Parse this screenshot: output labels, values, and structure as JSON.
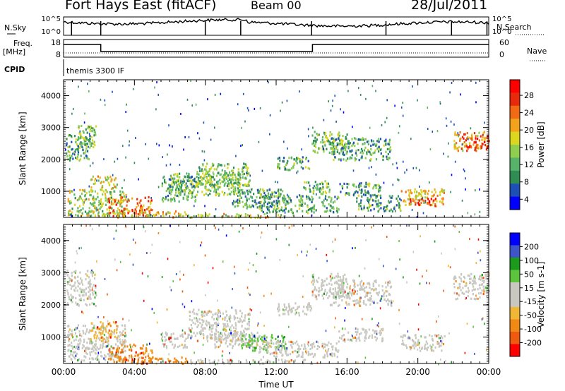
{
  "header": {
    "station": "Fort Hays East (fitACF)",
    "beam": "Beam 00",
    "date": "28/Jul/2011"
  },
  "top_panel": {
    "nsky_label": "N.Sky",
    "nsearch_label": "N.Search",
    "y_ticks_left": [
      "10^5",
      "10^0"
    ],
    "y_ticks_right": [
      "10^5",
      "10^0"
    ]
  },
  "freq_panel": {
    "label": "Freq.",
    "unit": "[MHz]",
    "nave_label": "Nave",
    "y_ticks_left": [
      "18",
      "8"
    ],
    "y_ticks_right": [
      "60",
      "0"
    ]
  },
  "cpid": {
    "label": "CPID",
    "value": "themis 3300 IF"
  },
  "colors": {
    "power_scale": [
      "#0000ff",
      "#1e4fb4",
      "#2f8d54",
      "#58b36a",
      "#8fce4f",
      "#dcd61e",
      "#f3a21c",
      "#f26a14",
      "#e82a0c",
      "#ff0000"
    ],
    "velocity_scale": [
      "#0000ff",
      "#3d55c8",
      "#1b9a1b",
      "#5cc43c",
      "#c8c8c0",
      "#c8c8c0",
      "#f2b636",
      "#f08a14",
      "#ee5a10",
      "#ff0000"
    ]
  },
  "chart_data": [
    {
      "type": "heatmap",
      "name": "power",
      "ylabel": "Slant Range [km]",
      "ylim": [
        180,
        4500
      ],
      "y_ticks": [
        1000,
        2000,
        3000,
        4000
      ],
      "x_ticks": [
        "00:00",
        "04:00",
        "08:00",
        "12:00",
        "16:00",
        "20:00",
        "00:00"
      ],
      "xlim_hours": [
        0,
        24
      ],
      "colorbar": {
        "label": "Power [dB]",
        "ticks": [
          "28",
          "24",
          "20",
          "16",
          "12",
          "8",
          "4"
        ],
        "range": [
          0,
          30
        ]
      },
      "regions": [
        {
          "t0": 0.1,
          "t1": 1.5,
          "r0": 2000,
          "r1": 2800,
          "level": 10
        },
        {
          "t0": 0.8,
          "t1": 1.8,
          "r0": 2300,
          "r1": 3100,
          "level": 12
        },
        {
          "t0": 0.2,
          "t1": 3.5,
          "r0": 250,
          "r1": 1100,
          "level": 14
        },
        {
          "t0": 1.5,
          "t1": 3.0,
          "r0": 1100,
          "r1": 1500,
          "level": 16
        },
        {
          "t0": 2.5,
          "t1": 5.0,
          "r0": 250,
          "r1": 850,
          "level": 22
        },
        {
          "t0": 5.5,
          "t1": 7.5,
          "r0": 700,
          "r1": 1500,
          "level": 10
        },
        {
          "t0": 6.0,
          "t1": 10.0,
          "r0": 900,
          "r1": 1600,
          "level": 12
        },
        {
          "t0": 7.5,
          "t1": 10.5,
          "r0": 1200,
          "r1": 1900,
          "level": 12
        },
        {
          "t0": 9.5,
          "t1": 12.5,
          "r0": 500,
          "r1": 1100,
          "level": 10
        },
        {
          "t0": 11.0,
          "t1": 15.5,
          "r0": 350,
          "r1": 900,
          "level": 10
        },
        {
          "t0": 12.0,
          "t1": 14.0,
          "r0": 1700,
          "r1": 2100,
          "level": 10
        },
        {
          "t0": 13.5,
          "t1": 15.0,
          "r0": 950,
          "r1": 1350,
          "level": 12
        },
        {
          "t0": 14.0,
          "t1": 16.0,
          "r0": 2200,
          "r1": 2900,
          "level": 12
        },
        {
          "t0": 15.0,
          "t1": 18.5,
          "r0": 2000,
          "r1": 2700,
          "level": 10
        },
        {
          "t0": 15.5,
          "t1": 18.0,
          "r0": 900,
          "r1": 1300,
          "level": 10
        },
        {
          "t0": 16.5,
          "t1": 19.0,
          "r0": 400,
          "r1": 900,
          "level": 10
        },
        {
          "t0": 19.0,
          "t1": 21.5,
          "r0": 600,
          "r1": 1100,
          "level": 18
        },
        {
          "t0": 19.5,
          "t1": 21.0,
          "r0": 550,
          "r1": 800,
          "level": 26
        },
        {
          "t0": 22.0,
          "t1": 24.0,
          "r0": 2300,
          "r1": 2900,
          "level": 20
        },
        {
          "t0": 22.5,
          "t1": 24.0,
          "r0": 2400,
          "r1": 2700,
          "level": 25
        },
        {
          "t0": 3.0,
          "t1": 7.0,
          "r0": 200,
          "r1": 400,
          "level": 18
        },
        {
          "t0": 7.0,
          "t1": 13.0,
          "r0": 200,
          "r1": 320,
          "level": 16
        }
      ]
    },
    {
      "type": "heatmap",
      "name": "velocity",
      "ylabel": "Slant Range [km]",
      "xlabel": "Time UT",
      "ylim": [
        180,
        4500
      ],
      "y_ticks": [
        1000,
        2000,
        3000,
        4000
      ],
      "x_ticks": [
        "00:00",
        "04:00",
        "08:00",
        "12:00",
        "16:00",
        "20:00",
        "00:00"
      ],
      "xlim_hours": [
        0,
        24
      ],
      "colorbar": {
        "label": "Velocity [m s-1]",
        "ticks": [
          "200",
          "100",
          "50",
          "15",
          "-15",
          "-50",
          "-100",
          "-200"
        ],
        "range": [
          -250,
          250
        ]
      },
      "regions": [
        {
          "t0": 0.1,
          "t1": 1.8,
          "r0": 2000,
          "r1": 3100,
          "level": 0
        },
        {
          "t0": 0.2,
          "t1": 3.5,
          "r0": 300,
          "r1": 1400,
          "level": 0
        },
        {
          "t0": 1.5,
          "t1": 3.0,
          "r0": 900,
          "r1": 1500,
          "level": -60
        },
        {
          "t0": 2.5,
          "t1": 5.0,
          "r0": 250,
          "r1": 800,
          "level": -150
        },
        {
          "t0": 5.5,
          "t1": 7.0,
          "r0": 700,
          "r1": 1200,
          "level": -50
        },
        {
          "t0": 7.0,
          "t1": 10.5,
          "r0": 900,
          "r1": 1900,
          "level": 0
        },
        {
          "t0": 8.5,
          "t1": 11.0,
          "r0": 700,
          "r1": 1200,
          "level": 40
        },
        {
          "t0": 10.0,
          "t1": 12.5,
          "r0": 600,
          "r1": 1100,
          "level": 60
        },
        {
          "t0": 11.0,
          "t1": 15.5,
          "r0": 400,
          "r1": 900,
          "level": 0
        },
        {
          "t0": 12.0,
          "t1": 14.0,
          "r0": 1700,
          "r1": 2100,
          "level": 0
        },
        {
          "t0": 14.0,
          "t1": 16.0,
          "r0": 2200,
          "r1": 3000,
          "level": 0
        },
        {
          "t0": 15.0,
          "t1": 18.5,
          "r0": 2000,
          "r1": 2800,
          "level": 0
        },
        {
          "t0": 15.5,
          "t1": 18.0,
          "r0": 900,
          "r1": 1300,
          "level": 0
        },
        {
          "t0": 19.0,
          "t1": 21.5,
          "r0": 600,
          "r1": 1100,
          "level": 0
        },
        {
          "t0": 22.0,
          "t1": 24.0,
          "r0": 2200,
          "r1": 3000,
          "level": 0
        },
        {
          "t0": 3.0,
          "t1": 7.0,
          "r0": 200,
          "r1": 400,
          "level": -140
        },
        {
          "t0": 7.0,
          "t1": 14.0,
          "r0": 200,
          "r1": 330,
          "level": -40
        }
      ]
    }
  ]
}
